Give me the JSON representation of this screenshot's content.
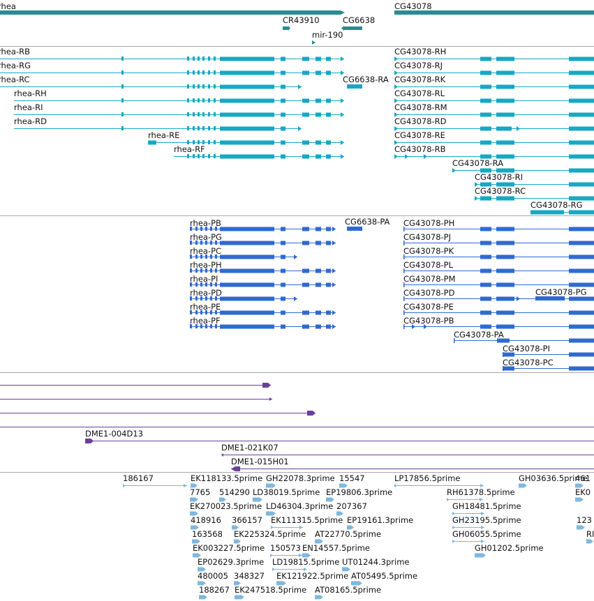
{
  "colors": {
    "gene": "#2a8c90",
    "transcript": "#16a8c4",
    "protein": "#2f6ad0",
    "clone": "#6a3f9a",
    "est": "#7fb7de",
    "separator": "#a8a8a8"
  },
  "tracks": {
    "genes": {
      "labels": [
        "rhea",
        "CR43910",
        "CG6638",
        "mir-190",
        "CG43078"
      ]
    },
    "transcripts": {
      "labels": [
        "rhea-RB",
        "rhea-RG",
        "rhea-RC",
        "rhea-RH",
        "rhea-RI",
        "rhea-RD",
        "rhea-RE",
        "rhea-RF",
        "CG6638-RA",
        "CG43078-RH",
        "CG43078-RJ",
        "CG43078-RK",
        "CG43078-RL",
        "CG43078-RM",
        "CG43078-RD",
        "CG43078-RE",
        "CG43078-RB",
        "CG43078-RA",
        "CG43078-RI",
        "CG43078-RC",
        "CG43078-RG"
      ]
    },
    "proteins": {
      "labels": [
        "rhea-PB",
        "rhea-PG",
        "rhea-PC",
        "rhea-PH",
        "rhea-PI",
        "rhea-PD",
        "rhea-PE",
        "rhea-PF",
        "CG6638-PA",
        "CG43078-PH",
        "CG43078-PJ",
        "CG43078-PK",
        "CG43078-PL",
        "CG43078-PM",
        "CG43078-PD",
        "CG43078-PG",
        "CG43078-PE",
        "CG43078-PB",
        "CG43078-PA",
        "CG43078-PI",
        "CG43078-PC"
      ]
    },
    "clones": {
      "labels": [
        "DME1-004D13",
        "DME1-021K07",
        "DME1-015H01"
      ]
    },
    "ests": {
      "labels": [
        "186167",
        "EK118133.5prime",
        "GH22078.3prime",
        "15547",
        "LP17856.5prime",
        "GH03636.5prime",
        "461",
        "7765",
        "514290",
        "LD38019.5prime",
        "EP19806.3prime",
        "RH61378.5prime",
        "EK0",
        "EK270023.5prime",
        "LD46304.3prime",
        "207367",
        "GH18481.5prime",
        "418916",
        "366157",
        "EK111315.5prime",
        "EP19161.3prime",
        "GH23195.5prime",
        "123",
        "163568",
        "EK225324.5prime",
        "AT22770.5prime",
        "GH06055.5prime",
        "RI",
        "EK003227.5prime",
        "150573",
        "EN14557.5prime",
        "GH01202.5prime",
        "EP02629.3prime",
        "LD19815.5prime",
        "UT01244.3prime",
        "480005",
        "348327",
        "EK121922.5prime",
        "AT05495.5prime",
        "188267",
        "EK247518.5prime",
        "AT08165.5prime"
      ]
    }
  }
}
